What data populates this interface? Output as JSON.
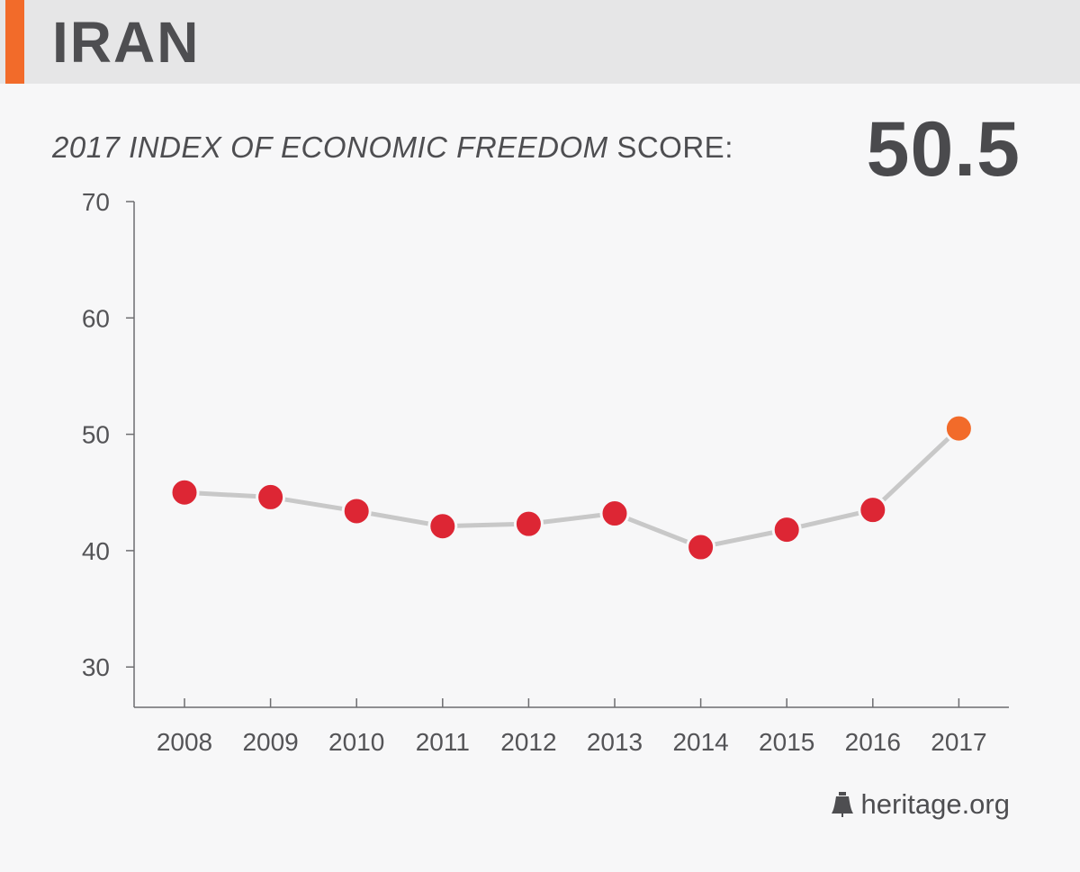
{
  "header": {
    "country": "IRAN"
  },
  "score": {
    "label_italic": "2017 INDEX OF ECONOMIC FREEDOM",
    "label_rest": " SCORE:",
    "value": "50.5"
  },
  "colors": {
    "accent": "#f26b2a",
    "point": "#dd2634",
    "highlight": "#f26b2a",
    "line": "#c8c8c8",
    "axis": "#6d6d70"
  },
  "footer": {
    "site": "heritage.org",
    "logo_icon": "liberty-bell-icon"
  },
  "chart_data": {
    "type": "line",
    "title": "",
    "xlabel": "",
    "ylabel": "",
    "categories": [
      "2008",
      "2009",
      "2010",
      "2011",
      "2012",
      "2013",
      "2014",
      "2015",
      "2016",
      "2017"
    ],
    "values": [
      45.0,
      44.6,
      43.4,
      42.1,
      42.3,
      43.2,
      40.3,
      41.8,
      43.5,
      50.5
    ],
    "yticks": [
      30,
      40,
      50,
      60,
      70
    ],
    "ylim": [
      26.5,
      70
    ],
    "highlight_index": 9,
    "grid": false,
    "legend": "none"
  }
}
